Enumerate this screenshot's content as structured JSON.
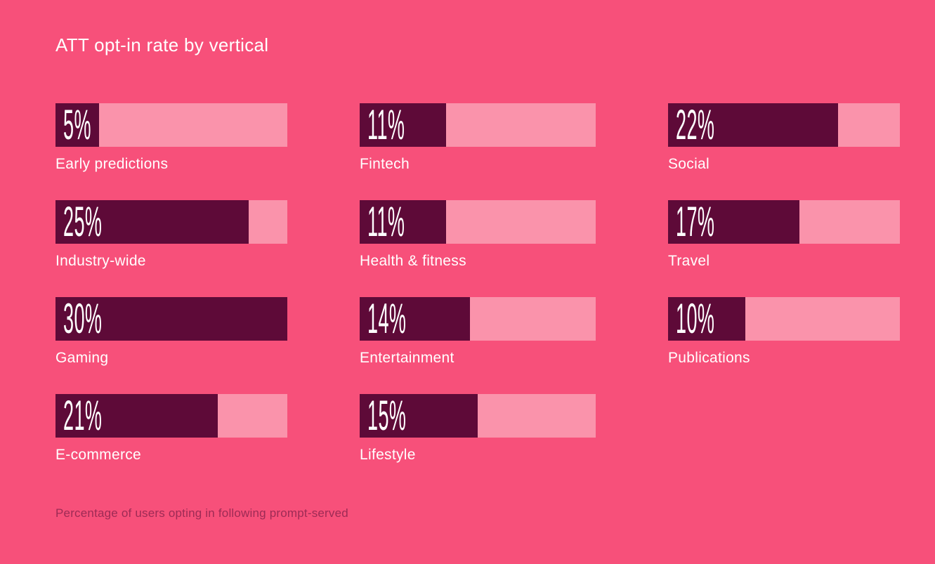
{
  "header": {
    "title": "ATT opt-in rate by vertical"
  },
  "footnote": {
    "text": "Percentage of users opting in following prompt-served"
  },
  "colors": {
    "background": "#F7507A",
    "bar_filled": "#5E0A38",
    "bar_remainder": "#FA93AB",
    "title_text": "#FFFFFF",
    "footnote_text": "#9D2B55"
  },
  "chart_data": {
    "type": "bar",
    "orientation": "horizontal",
    "title": "ATT opt-in rate by vertical",
    "categories": [
      "Early predictions",
      "Industry-wide",
      "Gaming",
      "E-commerce",
      "Fintech",
      "Health & fitness",
      "Entertainment",
      "Lifestyle",
      "Social",
      "Travel",
      "Publications"
    ],
    "values": [
      5,
      25,
      30,
      21,
      11,
      11,
      14,
      15,
      22,
      17,
      10
    ],
    "value_labels": [
      "5%",
      "25%",
      "30%",
      "21%",
      "11%",
      "11%",
      "14%",
      "15%",
      "22%",
      "17%",
      "10%"
    ],
    "value_suffix": "%",
    "xlim": [
      0,
      30
    ],
    "grid": false,
    "legend": false,
    "layout": "3-column grid, column-major order (4 + 4 + 3 items)",
    "note": "Percentage of users opting in following prompt-served"
  }
}
